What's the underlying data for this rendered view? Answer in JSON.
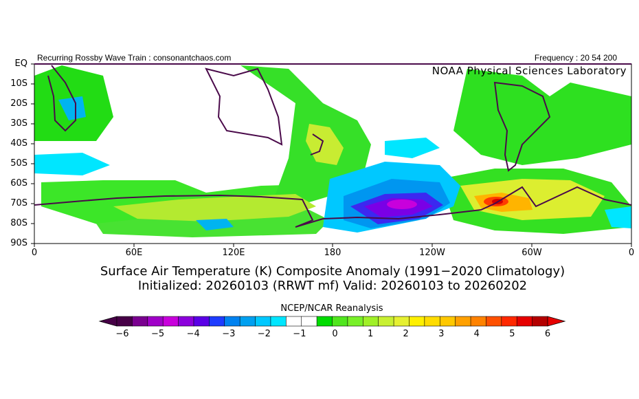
{
  "header": {
    "left": "Recurring Rossby Wave Train : consonantchaos.com",
    "right": "Frequency : 20 54 200",
    "lab": "NOAA Physical Sciences Laboratory"
  },
  "map": {
    "lat_labels": [
      "EQ",
      "10S",
      "20S",
      "30S",
      "40S",
      "50S",
      "60S",
      "70S",
      "80S",
      "90S"
    ],
    "lon_labels": [
      "0",
      "60E",
      "120E",
      "180",
      "120W",
      "60W",
      "0"
    ]
  },
  "title": {
    "line1": "Surface Air Temperature (K) Composite Anomaly (1991−2020 Climatology)",
    "line2": "Initialized: 20260103 (RRWT mf) Valid: 20260103 to 20260202"
  },
  "colorbar": {
    "label": "NCEP/NCAR Reanalysis",
    "ticks": [
      "−6",
      "−5",
      "−4",
      "−3",
      "−2",
      "−1",
      "0",
      "1",
      "2",
      "3",
      "4",
      "5",
      "6"
    ],
    "colors": [
      "#460046",
      "#7a0090",
      "#a000c8",
      "#c800dc",
      "#8c00dc",
      "#5a00e6",
      "#1e3cff",
      "#0082f0",
      "#00a0f0",
      "#00c8ff",
      "#00e6ff",
      "#ffffff",
      "#ffffff",
      "#00dc00",
      "#50e61e",
      "#78f028",
      "#a0f028",
      "#c8f032",
      "#e6f032",
      "#fff000",
      "#ffdc00",
      "#ffc800",
      "#ffa000",
      "#ff8200",
      "#ff5000",
      "#ff2800",
      "#e60000",
      "#b40000"
    ]
  }
}
